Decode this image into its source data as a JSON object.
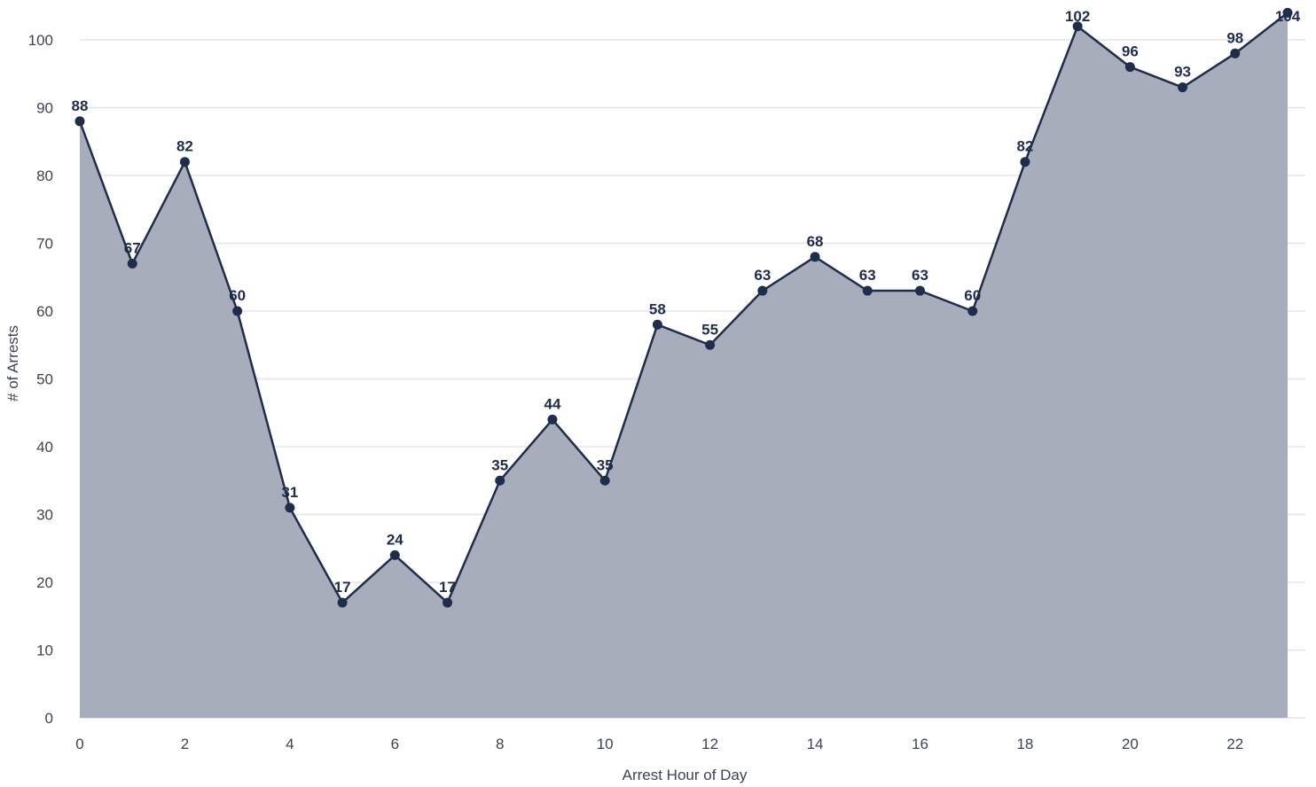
{
  "chart_data": {
    "type": "area",
    "title": "",
    "xlabel": "Arrest Hour of Day",
    "ylabel": "# of Arrests",
    "x": [
      0,
      1,
      2,
      3,
      4,
      5,
      6,
      7,
      8,
      9,
      10,
      11,
      12,
      13,
      14,
      15,
      16,
      17,
      18,
      19,
      20,
      21,
      22,
      23
    ],
    "series": [
      {
        "values": [
          88,
          67,
          82,
          60,
          31,
          17,
          24,
          17,
          35,
          44,
          35,
          58,
          55,
          63,
          68,
          63,
          63,
          60,
          82,
          102,
          96,
          93,
          98,
          104
        ]
      }
    ],
    "xlim": [
      0,
      23
    ],
    "ylim": [
      0,
      100
    ],
    "x_ticks": [
      0,
      2,
      4,
      6,
      8,
      10,
      12,
      14,
      16,
      18,
      20,
      22
    ],
    "y_ticks": [
      0,
      10,
      20,
      30,
      40,
      50,
      60,
      70,
      80,
      90,
      100
    ],
    "grid": "horizontal",
    "legend": "none",
    "data_labels": true,
    "colors": {
      "line": "#1f2d4d",
      "fill": "#a8adbb",
      "grid": "#e3e5ea",
      "text": "#3b4355"
    }
  }
}
